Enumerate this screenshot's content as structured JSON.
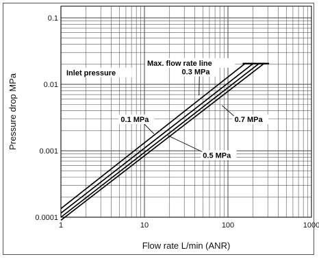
{
  "chart_data": {
    "type": "line",
    "xlabel": "Flow rate  L/min (ANR)",
    "ylabel": "Pressure drop  MPa",
    "x_scale": "log",
    "y_scale": "log",
    "xlim": [
      1,
      1000
    ],
    "ylim": [
      0.0001,
      0.15
    ],
    "grid": true,
    "x_ticks": [
      {
        "value": 1,
        "label": "1"
      },
      {
        "value": 10,
        "label": "10"
      },
      {
        "value": 100,
        "label": "100"
      },
      {
        "value": 1000,
        "label": "1000"
      }
    ],
    "y_ticks": [
      {
        "value": 0.0001,
        "label": "0.0001"
      },
      {
        "value": 0.001,
        "label": "0.001"
      },
      {
        "value": 0.01,
        "label": "0.01"
      },
      {
        "value": 0.1,
        "label": "0.1"
      }
    ],
    "series": [
      {
        "name": "0.1 MPa",
        "x": [
          1,
          160
        ],
        "y": [
          0.000135,
          0.0205
        ]
      },
      {
        "name": "0.3 MPa",
        "x": [
          1,
          200
        ],
        "y": [
          0.000115,
          0.0205
        ]
      },
      {
        "name": "0.5 MPa",
        "x": [
          1,
          235
        ],
        "y": [
          0.0001,
          0.0205
        ]
      },
      {
        "name": "0.7 MPa",
        "x": [
          1,
          270
        ],
        "y": [
          9e-05,
          0.0205
        ]
      }
    ],
    "annotations": {
      "max_flow_line_label": "Max. flow rate line",
      "max_flow_line": {
        "x": [
          150,
          310
        ],
        "y": [
          0.0205,
          0.0205
        ]
      },
      "inlet_pressure_label": "Inlet pressure",
      "labels": [
        {
          "text": "0.3 MPa",
          "x": 28,
          "y": 0.0141
        },
        {
          "text": "0.1 MPa",
          "x": 5.2,
          "y": 0.0027
        },
        {
          "text": "0.7 MPa",
          "x": 120,
          "y": 0.0027
        },
        {
          "text": "0.5 MPa",
          "x": 50,
          "y": 0.00078
        }
      ]
    }
  }
}
